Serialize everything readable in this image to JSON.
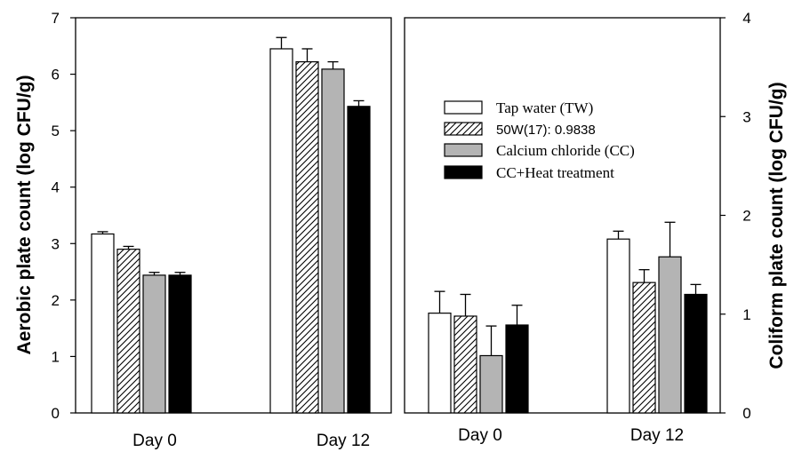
{
  "chart_data": [
    {
      "type": "bar",
      "panel": "left",
      "categories": [
        "Day 0",
        "Day 12"
      ],
      "ylabel": "Aerobic plate count (log CFU/g)",
      "ylim": [
        0,
        7
      ],
      "yticks": [
        "0",
        "1",
        "2",
        "3",
        "4",
        "5",
        "6",
        "7"
      ],
      "series": [
        {
          "name": "Tap water (TW)",
          "values": [
            3.17,
            6.45
          ],
          "errors": [
            0.04,
            0.2
          ]
        },
        {
          "name": "50W(17): 0.9838",
          "values": [
            2.9,
            6.22
          ],
          "errors": [
            0.05,
            0.23
          ]
        },
        {
          "name": "Calcium chloride (CC)",
          "values": [
            2.44,
            6.09
          ],
          "errors": [
            0.05,
            0.13
          ]
        },
        {
          "name": "CC+Heat treatment",
          "values": [
            2.44,
            5.43
          ],
          "errors": [
            0.05,
            0.1
          ]
        }
      ]
    },
    {
      "type": "bar",
      "panel": "right",
      "categories": [
        "Day 0",
        "Day 12"
      ],
      "ylabel": "Coliform plate count (log CFU/g)",
      "ylim": [
        0,
        4
      ],
      "yticks": [
        "0",
        "1",
        "2",
        "3",
        "4"
      ],
      "series": [
        {
          "name": "Tap water (TW)",
          "values": [
            1.01,
            1.76
          ],
          "errors": [
            0.22,
            0.08
          ]
        },
        {
          "name": "50W(17): 0.9838",
          "values": [
            0.98,
            1.32
          ],
          "errors": [
            0.22,
            0.13
          ]
        },
        {
          "name": "Calcium chloride (CC)",
          "values": [
            0.58,
            1.58
          ],
          "errors": [
            0.3,
            0.35
          ]
        },
        {
          "name": "CC+Heat treatment",
          "values": [
            0.89,
            1.2
          ],
          "errors": [
            0.2,
            0.1
          ]
        }
      ],
      "legend": {
        "position": "top-right"
      }
    }
  ],
  "legend_items": [
    {
      "label": "Tap water (TW)",
      "style": "white",
      "font": "serif"
    },
    {
      "label": "50W(17): 0.9838",
      "style": "hatch",
      "font": "sans"
    },
    {
      "label": "Calcium chloride (CC)",
      "style": "gray",
      "font": "serif"
    },
    {
      "label": "CC+Heat treatment",
      "style": "black",
      "font": "serif"
    }
  ],
  "colors": {
    "white": "#ffffff",
    "gray": "#b4b4b4",
    "black": "#000000",
    "stroke": "#000000"
  }
}
